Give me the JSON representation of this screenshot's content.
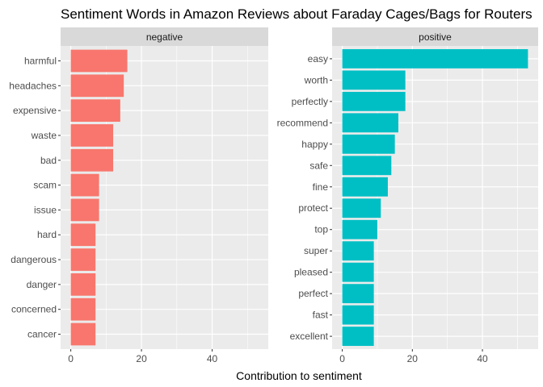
{
  "chart_data": {
    "type": "bar",
    "title": "Sentiment Words in Amazon Reviews about Faraday Cages/Bags for Routers",
    "xlabel": "Contribution to sentiment",
    "ylabel": "",
    "xlim": [
      0,
      53
    ],
    "xticks": [
      0,
      20,
      40
    ],
    "grid": true,
    "legend": "none",
    "panels": [
      {
        "name": "negative",
        "color": "#F8766D",
        "categories": [
          "harmful",
          "headaches",
          "expensive",
          "waste",
          "bad",
          "scam",
          "issue",
          "hard",
          "dangerous",
          "danger",
          "concerned",
          "cancer"
        ],
        "values": [
          16,
          15,
          14,
          12,
          12,
          8,
          8,
          7,
          7,
          7,
          7,
          7
        ]
      },
      {
        "name": "positive",
        "color": "#00BFC4",
        "categories": [
          "easy",
          "worth",
          "perfectly",
          "recommend",
          "happy",
          "safe",
          "fine",
          "protect",
          "top",
          "super",
          "pleased",
          "perfect",
          "fast",
          "excellent"
        ],
        "values": [
          53,
          18,
          18,
          16,
          15,
          14,
          13,
          11,
          10,
          9,
          9,
          9,
          9,
          9
        ]
      }
    ]
  }
}
